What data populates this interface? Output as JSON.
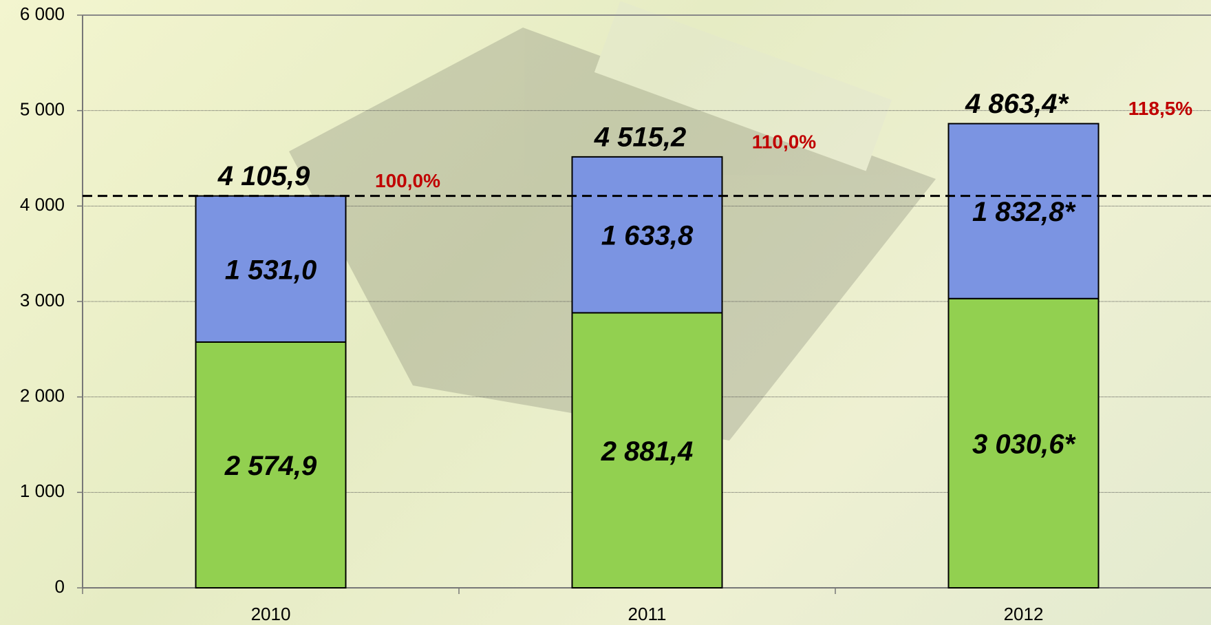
{
  "chart_data": {
    "type": "stacked_bar",
    "categories": [
      "2010",
      "2011",
      "2012"
    ],
    "series": [
      {
        "color": "#92d050",
        "values": [
          2574.9,
          2881.4,
          3030.6
        ],
        "value_labels": [
          "2 574,9",
          "2 881,4",
          "3 030,6*"
        ]
      },
      {
        "color": "#7b94e2",
        "values": [
          1531.0,
          1633.8,
          1832.8
        ],
        "value_labels": [
          "1 531,0",
          "1 633,8",
          "1 832,8*"
        ]
      }
    ],
    "totals": {
      "values": [
        4105.9,
        4515.2,
        4863.4
      ],
      "value_labels": [
        "4 105,9",
        "4 515,2",
        "4 863,4*"
      ]
    },
    "percent_labels": {
      "color": "#c00000",
      "values": [
        100.0,
        110.0,
        118.5
      ],
      "value_labels": [
        "100,0%",
        "110,0%",
        "118,5%"
      ]
    },
    "reference_line": 4105.9,
    "ylim": [
      0,
      6000
    ],
    "yticks": [
      0,
      {
        "value": 1000,
        "label": "1 000"
      },
      {
        "value": 2000,
        "label": "2 000"
      },
      {
        "value": 3000,
        "label": "3 000"
      },
      {
        "value": 4000,
        "label": "4 000"
      },
      {
        "value": 5000,
        "label": "5 000"
      },
      {
        "value": 6000,
        "label": "6 000"
      }
    ],
    "grid": true
  }
}
